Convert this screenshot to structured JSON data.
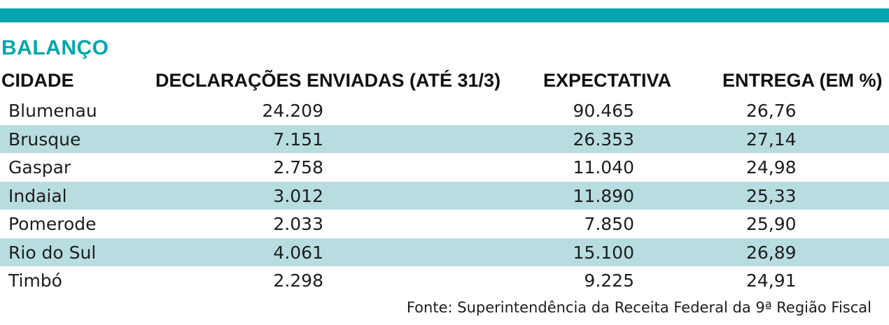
{
  "title": "BALANÇO",
  "colors": {
    "accent": "#00a5ad",
    "row_shade": "#b8dde1"
  },
  "columns": {
    "city": "CIDADE",
    "declarations": "DECLARAÇÕES ENVIADAS (ATÉ 31/3)",
    "expectation": "EXPECTATIVA",
    "delivery": "ENTREGA (EM %)"
  },
  "rows": [
    {
      "city": "Blumenau",
      "declarations": "24.209",
      "expectation": "90.465",
      "delivery": "26,76"
    },
    {
      "city": "Brusque",
      "declarations": "7.151",
      "expectation": "26.353",
      "delivery": "27,14"
    },
    {
      "city": "Gaspar",
      "declarations": "2.758",
      "expectation": "11.040",
      "delivery": "24,98"
    },
    {
      "city": "Indaial",
      "declarations": "3.012",
      "expectation": "11.890",
      "delivery": "25,33"
    },
    {
      "city": "Pomerode",
      "declarations": "2.033",
      "expectation": "7.850",
      "delivery": "25,90"
    },
    {
      "city": "Rio do Sul",
      "declarations": "4.061",
      "expectation": "15.100",
      "delivery": "26,89"
    },
    {
      "city": "Timbó",
      "declarations": "2.298",
      "expectation": "9.225",
      "delivery": "24,91"
    }
  ],
  "source": "Fonte: Superintendência da Receita Federal da 9ª Região Fiscal"
}
